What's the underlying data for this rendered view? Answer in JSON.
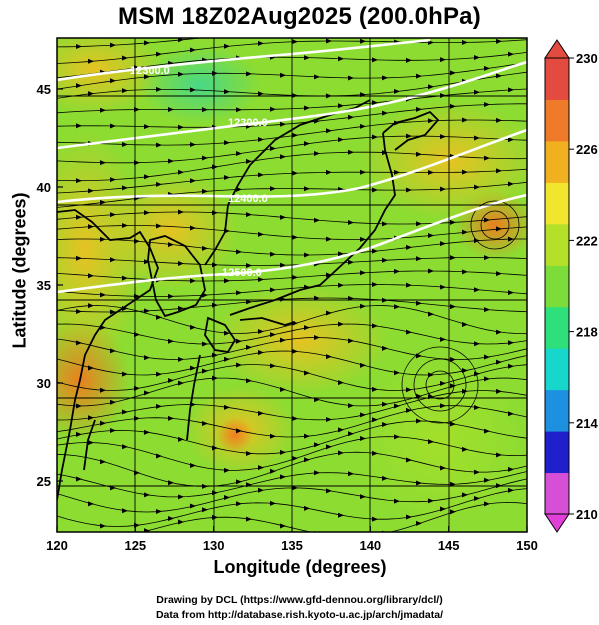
{
  "title": "MSM 18Z02Aug2025 (200.0hPa)",
  "axes": {
    "xlabel": "Longitude (degrees)",
    "ylabel": "Latitude  (degrees)",
    "x_ticks": [
      "120",
      "125",
      "130",
      "135",
      "140",
      "145",
      "150"
    ],
    "y_ticks": [
      "25",
      "30",
      "35",
      "40",
      "45"
    ],
    "xlim": [
      120,
      150
    ],
    "ylim": [
      22.4,
      47.6
    ],
    "grid": true
  },
  "colorbar": {
    "ticks": [
      "230",
      "226",
      "222",
      "218",
      "214",
      "210"
    ],
    "range": [
      210,
      230
    ],
    "colors": [
      "#d64fd6",
      "#1f1fcc",
      "#1e90e0",
      "#17d6cc",
      "#2ee07a",
      "#7cdd3a",
      "#b5e02a",
      "#f2e52e",
      "#f0b020",
      "#ee7a2a",
      "#e34b40"
    ]
  },
  "contours": [
    {
      "label": "12300.0"
    },
    {
      "label": "12300.0"
    },
    {
      "label": "12400.0"
    },
    {
      "label": "12500.0"
    }
  ],
  "credits": {
    "line1": "Drawing by DCL (https://www.gfd-dennou.org/library/dcl/)",
    "line2": "Data from http://database.rish.kyoto-u.ac.jp/arch/jmadata/"
  }
}
